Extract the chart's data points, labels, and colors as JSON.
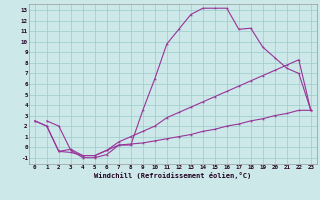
{
  "xlabel": "Windchill (Refroidissement éolien,°C)",
  "bg_color": "#cce8e8",
  "grid_color": "#99cccc",
  "line_color": "#993399",
  "xlim": [
    -0.5,
    23.5
  ],
  "ylim": [
    -1.6,
    13.6
  ],
  "xticks": [
    0,
    1,
    2,
    3,
    4,
    5,
    6,
    7,
    8,
    9,
    10,
    11,
    12,
    13,
    14,
    15,
    16,
    17,
    18,
    19,
    20,
    21,
    22,
    23
  ],
  "yticks": [
    -1,
    0,
    1,
    2,
    3,
    4,
    5,
    6,
    7,
    8,
    9,
    10,
    11,
    12,
    13
  ],
  "curve1_x": [
    1,
    2,
    3,
    4,
    5,
    6,
    7,
    8,
    9,
    10,
    11,
    12,
    13,
    14,
    15,
    16,
    17,
    18,
    19,
    20,
    21,
    22,
    23
  ],
  "curve1_y": [
    2.5,
    2.0,
    -0.3,
    -1.0,
    -1.0,
    -0.7,
    0.2,
    0.2,
    3.5,
    6.5,
    9.8,
    11.2,
    12.6,
    13.2,
    13.2,
    13.2,
    11.2,
    11.3,
    9.5,
    8.5,
    7.5,
    7.0,
    3.5
  ],
  "curve2_x": [
    0,
    1,
    2,
    3,
    4,
    5,
    6,
    7,
    8,
    9,
    10,
    11,
    12,
    13,
    14,
    15,
    16,
    17,
    18,
    19,
    20,
    21,
    22,
    23
  ],
  "curve2_y": [
    2.5,
    2.0,
    -0.4,
    -0.2,
    -0.8,
    -0.8,
    -0.3,
    0.5,
    1.0,
    1.5,
    2.0,
    2.8,
    3.3,
    3.8,
    4.3,
    4.8,
    5.3,
    5.8,
    6.3,
    6.8,
    7.3,
    7.8,
    8.3,
    3.5
  ],
  "curve3_x": [
    0,
    1,
    2,
    3,
    4,
    5,
    6,
    7,
    8,
    9,
    10,
    11,
    12,
    13,
    14,
    15,
    16,
    17,
    18,
    19,
    20,
    21,
    22,
    23
  ],
  "curve3_y": [
    2.5,
    2.0,
    -0.4,
    -0.5,
    -0.8,
    -0.8,
    -0.3,
    0.2,
    0.3,
    0.4,
    0.6,
    0.8,
    1.0,
    1.2,
    1.5,
    1.7,
    2.0,
    2.2,
    2.5,
    2.7,
    3.0,
    3.2,
    3.5,
    3.5
  ]
}
